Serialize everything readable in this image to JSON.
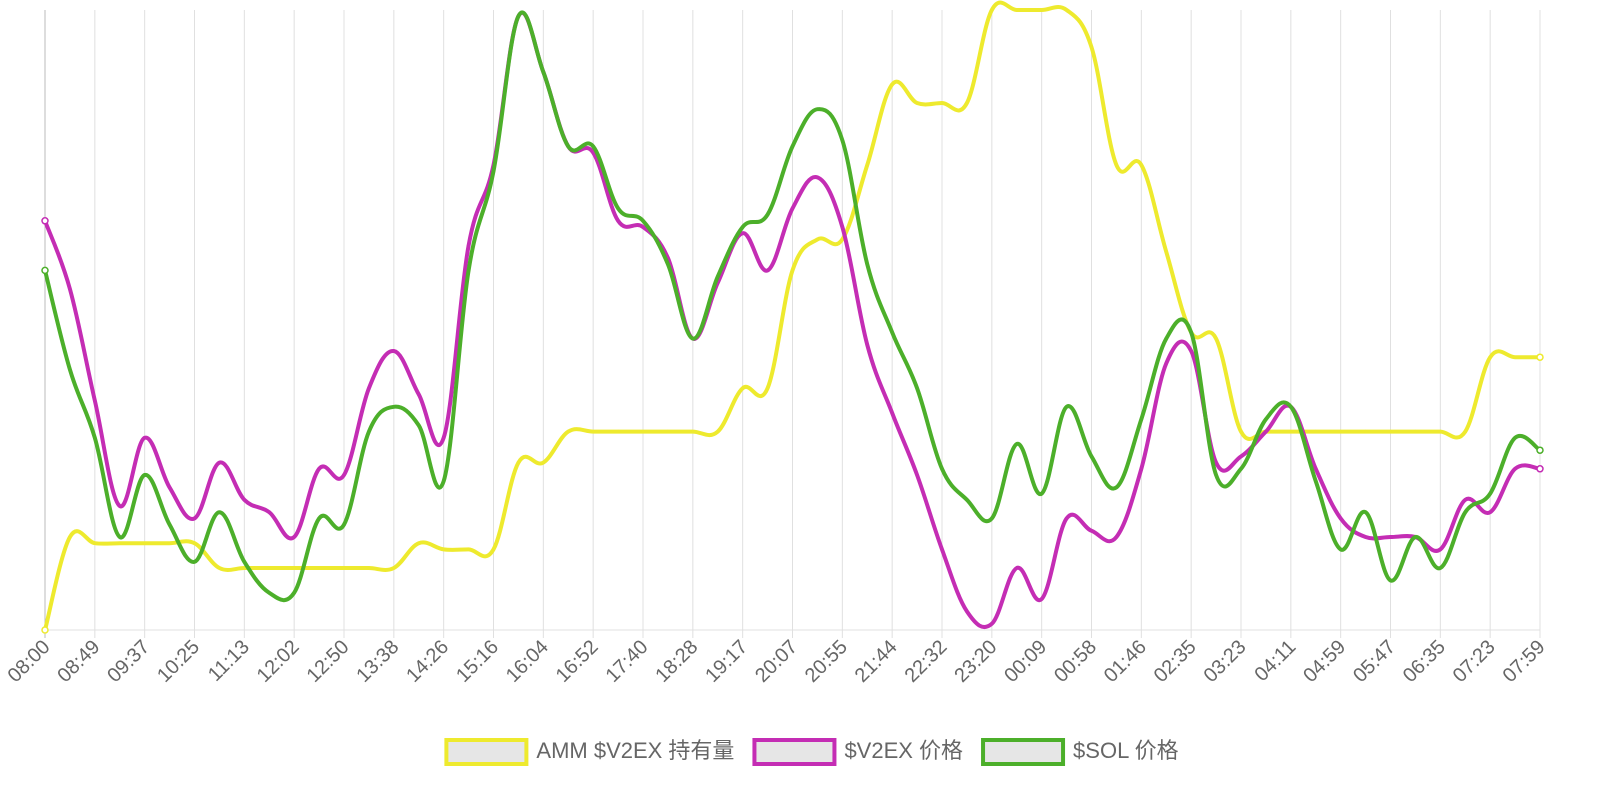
{
  "chart_data": {
    "type": "line",
    "categories": [
      "08:00",
      null,
      "08:49",
      null,
      "09:37",
      null,
      "10:25",
      null,
      "11:13",
      null,
      "12:02",
      null,
      "12:50",
      null,
      "13:38",
      null,
      "14:26",
      null,
      "15:16",
      null,
      "16:04",
      null,
      "16:52",
      null,
      "17:40",
      null,
      "18:28",
      null,
      "19:17",
      null,
      "20:07",
      null,
      "20:55",
      null,
      "21:44",
      null,
      "22:32",
      null,
      "23:20",
      null,
      "00:09",
      null,
      "00:58",
      null,
      "01:46",
      null,
      "02:35",
      null,
      "03:23",
      null,
      "04:11",
      null,
      "04:59",
      null,
      "05:47",
      null,
      "06:35",
      null,
      "07:23",
      null,
      "07:59"
    ],
    "ylim": [
      0,
      100
    ],
    "grid": true,
    "legend": "bottom",
    "series": [
      {
        "name": "AMM $V2EX 持有量",
        "color": "#eeea2e",
        "values": [
          0,
          15,
          14,
          14,
          14,
          14,
          14,
          10,
          10,
          10,
          10,
          10,
          10,
          10,
          10,
          14,
          13,
          13,
          13,
          27,
          27,
          32,
          32,
          32,
          32,
          32,
          32,
          32,
          39,
          39,
          58,
          63,
          63,
          75,
          88,
          85,
          85,
          85,
          100,
          100,
          100,
          100,
          94,
          75,
          75,
          61,
          48,
          47,
          32,
          32,
          32,
          32,
          32,
          32,
          32,
          32,
          32,
          32,
          44,
          44,
          44
        ]
      },
      {
        "name": "$V2EX 价格",
        "color": "#c42db4",
        "values": [
          66,
          55,
          37,
          20,
          31,
          23,
          18,
          27,
          21,
          19,
          15,
          26,
          25,
          39,
          45,
          38,
          31,
          62,
          75,
          99,
          90,
          78,
          77,
          66,
          65,
          60,
          47,
          56,
          64,
          58,
          68,
          73,
          65,
          46,
          35,
          25,
          13,
          3,
          1,
          10,
          5,
          18,
          16,
          15,
          26,
          43,
          45,
          27,
          28,
          32,
          36,
          26,
          18,
          15,
          15,
          15,
          13,
          21,
          19,
          26,
          26
        ]
      },
      {
        "name": "$SOL 价格",
        "color": "#4caf2a",
        "values": [
          58,
          42,
          31,
          15,
          25,
          17,
          11,
          19,
          11,
          6,
          6,
          18,
          17,
          32,
          36,
          33,
          24,
          58,
          74,
          99,
          90,
          78,
          78,
          68,
          66,
          59,
          47,
          57,
          65,
          67,
          78,
          84,
          79,
          59,
          48,
          39,
          26,
          21,
          18,
          30,
          22,
          36,
          28,
          23,
          34,
          47,
          48,
          25,
          26,
          34,
          36,
          24,
          13,
          19,
          8,
          15,
          10,
          19,
          22,
          31,
          29
        ]
      }
    ]
  }
}
